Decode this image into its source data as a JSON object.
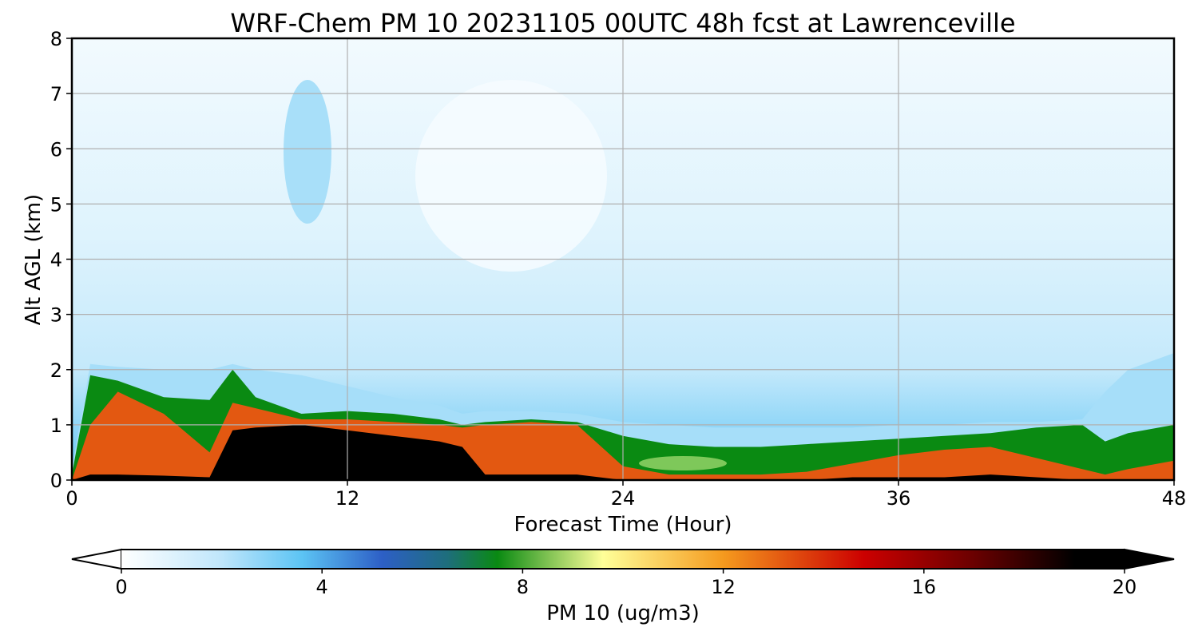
{
  "chart_data": {
    "type": "heatmap",
    "title": "WRF-Chem PM 10  20231105 00UTC 48h fcst at Lawrenceville",
    "xlabel": "Forecast Time (Hour)",
    "ylabel": "Alt AGL (km)",
    "xlim": [
      0,
      48
    ],
    "ylim": [
      0,
      8
    ],
    "x_ticks": [
      0,
      12,
      24,
      36,
      48
    ],
    "y_ticks": [
      0,
      1,
      2,
      3,
      4,
      5,
      6,
      7,
      8
    ],
    "grid": true,
    "colorbar": {
      "label": "PM 10  (ug/m3)",
      "range": [
        0,
        20
      ],
      "ticks": [
        0,
        4,
        8,
        12,
        16,
        20
      ],
      "extend": "both",
      "stops": [
        {
          "v": 0,
          "color": "#ffffff"
        },
        {
          "v": 2,
          "color": "#bfe6fb"
        },
        {
          "v": 3.6,
          "color": "#5cc4f4"
        },
        {
          "v": 5.2,
          "color": "#2d5fc6"
        },
        {
          "v": 6.5,
          "color": "#1e6e7c"
        },
        {
          "v": 7.5,
          "color": "#0a8a12"
        },
        {
          "v": 9.6,
          "color": "#ffff99"
        },
        {
          "v": 12,
          "color": "#f59a1e"
        },
        {
          "v": 14.8,
          "color": "#cc0000"
        },
        {
          "v": 17,
          "color": "#6a0000"
        },
        {
          "v": 19,
          "color": "#000000"
        }
      ]
    },
    "series": [
      {
        "hours": [
          0,
          0.8,
          2,
          4,
          6,
          7,
          8,
          10,
          12,
          14,
          16,
          17,
          18,
          20,
          22,
          24,
          26,
          28,
          30,
          32,
          34,
          36,
          38,
          40,
          42,
          44,
          45,
          46,
          48
        ]
      },
      {
        "top_2_km": [
          0.2,
          2.1,
          2.05,
          2.0,
          2.0,
          2.1,
          2.0,
          1.9,
          1.7,
          1.5,
          1.35,
          1.2,
          1.25,
          1.25,
          1.2,
          1.05,
          1.0,
          0.95,
          0.95,
          0.95,
          0.95,
          1.0,
          1.0,
          1.05,
          1.05,
          1.1,
          1.6,
          2.0,
          2.3
        ]
      },
      {
        "top_8_km": [
          0.1,
          1.9,
          1.8,
          1.5,
          1.45,
          2.0,
          1.5,
          1.2,
          1.25,
          1.2,
          1.1,
          1.0,
          1.05,
          1.1,
          1.05,
          0.8,
          0.65,
          0.6,
          0.6,
          0.65,
          0.7,
          0.75,
          0.8,
          0.85,
          0.95,
          1.0,
          0.7,
          0.85,
          1.0
        ]
      },
      {
        "top_15_km": [
          0.0,
          1.0,
          1.6,
          1.2,
          0.5,
          1.4,
          1.3,
          1.1,
          1.1,
          1.05,
          1.0,
          0.95,
          1.0,
          1.05,
          1.0,
          0.25,
          0.1,
          0.1,
          0.1,
          0.15,
          0.3,
          0.45,
          0.55,
          0.6,
          0.4,
          0.2,
          0.1,
          0.2,
          0.35
        ]
      },
      {
        "top_19_km": [
          0.0,
          0.1,
          0.1,
          0.08,
          0.05,
          0.9,
          0.95,
          1.0,
          0.9,
          0.8,
          0.7,
          0.6,
          0.1,
          0.1,
          0.1,
          0.0,
          0.0,
          0.0,
          0.0,
          0.0,
          0.05,
          0.05,
          0.05,
          0.1,
          0.05,
          0.0,
          0.0,
          0.0,
          0.0
        ]
      }
    ]
  }
}
